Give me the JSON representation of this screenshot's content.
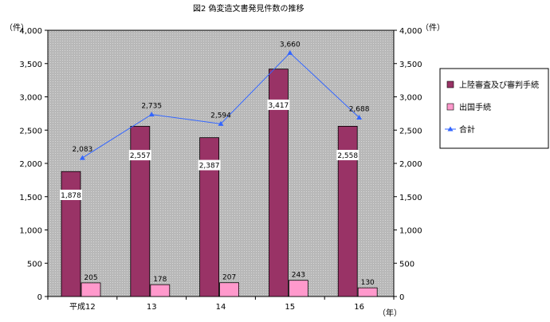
{
  "chart_data": {
    "type": "bar",
    "title": "図2  偽変造文書発見件数の推移",
    "categories": [
      "平成12",
      "13",
      "14",
      "15",
      "16"
    ],
    "x_unit": "（年）",
    "y_unit_left": "（件）",
    "y_unit_right": "（件）",
    "ylim": [
      0,
      4000
    ],
    "yticks": [
      0,
      500,
      1000,
      1500,
      2000,
      2500,
      3000,
      3500,
      4000
    ],
    "ytick_labels": [
      "0",
      "500",
      "1,000",
      "1,500",
      "2,000",
      "2,500",
      "3,000",
      "3,500",
      "4,000"
    ],
    "grid": false,
    "legend_position": "right",
    "series": [
      {
        "name": "上陸審査及び審判手続",
        "type": "bar",
        "values": [
          1878,
          2557,
          2387,
          3417,
          2558
        ],
        "labels": [
          "1,878",
          "2,557",
          "2,387",
          "3,417",
          "2,558"
        ],
        "color": "#993366"
      },
      {
        "name": "出国手続",
        "type": "bar",
        "values": [
          205,
          178,
          207,
          243,
          130
        ],
        "labels": [
          "205",
          "178",
          "207",
          "243",
          "130"
        ],
        "color": "#ff99cc"
      },
      {
        "name": "合計",
        "type": "line",
        "values": [
          2083,
          2735,
          2594,
          3660,
          2688
        ],
        "labels": [
          "2,083",
          "2,735",
          "2,594",
          "3,660",
          "2,688"
        ],
        "color": "#3366ff"
      }
    ],
    "plot_background": "#c0c0c0"
  }
}
